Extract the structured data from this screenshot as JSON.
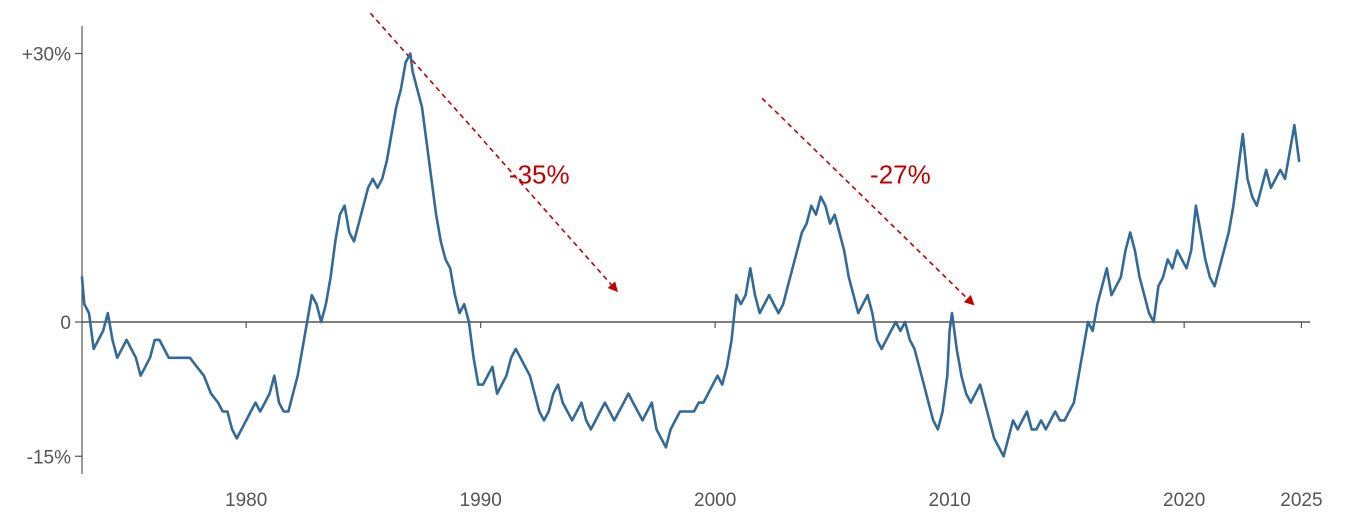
{
  "chart_data": {
    "type": "line",
    "title": "",
    "xlabel": "",
    "ylabel": "",
    "xlim": [
      1973.0,
      2025.0
    ],
    "ylim": [
      -17,
      30
    ],
    "grid": false,
    "legend": "none",
    "y_ticks": [
      {
        "value": 30,
        "label": "+30%"
      },
      {
        "value": 0,
        "label": "0"
      },
      {
        "value": -15,
        "label": "-15%"
      }
    ],
    "x_ticks": [
      {
        "value": 1980,
        "label": "1980"
      },
      {
        "value": 1990,
        "label": "1990"
      },
      {
        "value": 2000,
        "label": "2000"
      },
      {
        "value": 2010,
        "label": "2010"
      },
      {
        "value": 2020,
        "label": "2020"
      },
      {
        "value": 2025,
        "label": "2025"
      }
    ],
    "series": [
      {
        "color": "#336a96",
        "points": [
          [
            1973.0,
            5
          ],
          [
            1973.1,
            2
          ],
          [
            1973.3,
            1
          ],
          [
            1973.5,
            -3
          ],
          [
            1973.7,
            -2
          ],
          [
            1973.9,
            -1
          ],
          [
            1974.1,
            1
          ],
          [
            1974.3,
            -2
          ],
          [
            1974.5,
            -4
          ],
          [
            1974.7,
            -3
          ],
          [
            1974.9,
            -2
          ],
          [
            1975.1,
            -3
          ],
          [
            1975.3,
            -4
          ],
          [
            1975.5,
            -6
          ],
          [
            1975.7,
            -5
          ],
          [
            1975.9,
            -4
          ],
          [
            1976.1,
            -2
          ],
          [
            1976.3,
            -2
          ],
          [
            1976.5,
            -3
          ],
          [
            1976.7,
            -4
          ],
          [
            1977.0,
            -4
          ],
          [
            1977.3,
            -4
          ],
          [
            1977.6,
            -4
          ],
          [
            1977.9,
            -5
          ],
          [
            1978.2,
            -6
          ],
          [
            1978.5,
            -8
          ],
          [
            1978.8,
            -9
          ],
          [
            1979.0,
            -10
          ],
          [
            1979.2,
            -10
          ],
          [
            1979.4,
            -12
          ],
          [
            1979.6,
            -13
          ],
          [
            1979.8,
            -12
          ],
          [
            1980.0,
            -11
          ],
          [
            1980.2,
            -10
          ],
          [
            1980.4,
            -9
          ],
          [
            1980.6,
            -10
          ],
          [
            1980.8,
            -9
          ],
          [
            1981.0,
            -8
          ],
          [
            1981.2,
            -6
          ],
          [
            1981.4,
            -9
          ],
          [
            1981.6,
            -10
          ],
          [
            1981.8,
            -10
          ],
          [
            1982.0,
            -8
          ],
          [
            1982.2,
            -6
          ],
          [
            1982.4,
            -3
          ],
          [
            1982.6,
            0
          ],
          [
            1982.8,
            3
          ],
          [
            1983.0,
            2
          ],
          [
            1983.2,
            0
          ],
          [
            1983.4,
            2
          ],
          [
            1983.6,
            5
          ],
          [
            1983.8,
            9
          ],
          [
            1984.0,
            12
          ],
          [
            1984.2,
            13
          ],
          [
            1984.4,
            10
          ],
          [
            1984.6,
            9
          ],
          [
            1984.8,
            11
          ],
          [
            1985.0,
            13
          ],
          [
            1985.2,
            15
          ],
          [
            1985.4,
            16
          ],
          [
            1985.6,
            15
          ],
          [
            1985.8,
            16
          ],
          [
            1986.0,
            18
          ],
          [
            1986.2,
            21
          ],
          [
            1986.4,
            24
          ],
          [
            1986.6,
            26
          ],
          [
            1986.8,
            29
          ],
          [
            1987.0,
            30
          ],
          [
            1987.1,
            28
          ],
          [
            1987.3,
            26
          ],
          [
            1987.5,
            24
          ],
          [
            1987.7,
            20
          ],
          [
            1987.9,
            16
          ],
          [
            1988.1,
            12
          ],
          [
            1988.3,
            9
          ],
          [
            1988.5,
            7
          ],
          [
            1988.7,
            6
          ],
          [
            1988.9,
            3
          ],
          [
            1989.1,
            1
          ],
          [
            1989.3,
            2
          ],
          [
            1989.5,
            0
          ],
          [
            1989.7,
            -4
          ],
          [
            1989.9,
            -7
          ],
          [
            1990.1,
            -7
          ],
          [
            1990.3,
            -6
          ],
          [
            1990.5,
            -5
          ],
          [
            1990.7,
            -8
          ],
          [
            1990.9,
            -7
          ],
          [
            1991.1,
            -6
          ],
          [
            1991.3,
            -4
          ],
          [
            1991.5,
            -3
          ],
          [
            1991.7,
            -4
          ],
          [
            1991.9,
            -5
          ],
          [
            1992.1,
            -6
          ],
          [
            1992.3,
            -8
          ],
          [
            1992.5,
            -10
          ],
          [
            1992.7,
            -11
          ],
          [
            1992.9,
            -10
          ],
          [
            1993.1,
            -8
          ],
          [
            1993.3,
            -7
          ],
          [
            1993.5,
            -9
          ],
          [
            1993.7,
            -10
          ],
          [
            1993.9,
            -11
          ],
          [
            1994.1,
            -10
          ],
          [
            1994.3,
            -9
          ],
          [
            1994.5,
            -11
          ],
          [
            1994.7,
            -12
          ],
          [
            1994.9,
            -11
          ],
          [
            1995.1,
            -10
          ],
          [
            1995.3,
            -9
          ],
          [
            1995.5,
            -10
          ],
          [
            1995.7,
            -11
          ],
          [
            1995.9,
            -10
          ],
          [
            1996.1,
            -9
          ],
          [
            1996.3,
            -8
          ],
          [
            1996.5,
            -9
          ],
          [
            1996.7,
            -10
          ],
          [
            1996.9,
            -11
          ],
          [
            1997.1,
            -10
          ],
          [
            1997.3,
            -9
          ],
          [
            1997.5,
            -12
          ],
          [
            1997.7,
            -13
          ],
          [
            1997.9,
            -14
          ],
          [
            1998.1,
            -12
          ],
          [
            1998.3,
            -11
          ],
          [
            1998.5,
            -10
          ],
          [
            1998.7,
            -10
          ],
          [
            1998.9,
            -10
          ],
          [
            1999.1,
            -10
          ],
          [
            1999.3,
            -9
          ],
          [
            1999.5,
            -9
          ],
          [
            1999.7,
            -8
          ],
          [
            1999.9,
            -7
          ],
          [
            2000.1,
            -6
          ],
          [
            2000.3,
            -7
          ],
          [
            2000.5,
            -5
          ],
          [
            2000.7,
            -2
          ],
          [
            2000.9,
            3
          ],
          [
            2001.1,
            2
          ],
          [
            2001.3,
            3
          ],
          [
            2001.5,
            6
          ],
          [
            2001.7,
            3
          ],
          [
            2001.9,
            1
          ],
          [
            2002.1,
            2
          ],
          [
            2002.3,
            3
          ],
          [
            2002.5,
            2
          ],
          [
            2002.7,
            1
          ],
          [
            2002.9,
            2
          ],
          [
            2003.1,
            4
          ],
          [
            2003.3,
            6
          ],
          [
            2003.5,
            8
          ],
          [
            2003.7,
            10
          ],
          [
            2003.9,
            11
          ],
          [
            2004.1,
            13
          ],
          [
            2004.3,
            12
          ],
          [
            2004.5,
            14
          ],
          [
            2004.7,
            13
          ],
          [
            2004.9,
            11
          ],
          [
            2005.1,
            12
          ],
          [
            2005.3,
            10
          ],
          [
            2005.5,
            8
          ],
          [
            2005.7,
            5
          ],
          [
            2005.9,
            3
          ],
          [
            2006.1,
            1
          ],
          [
            2006.3,
            2
          ],
          [
            2006.5,
            3
          ],
          [
            2006.7,
            1
          ],
          [
            2006.9,
            -2
          ],
          [
            2007.1,
            -3
          ],
          [
            2007.3,
            -2
          ],
          [
            2007.5,
            -1
          ],
          [
            2007.7,
            0
          ],
          [
            2007.9,
            -1
          ],
          [
            2008.1,
            0
          ],
          [
            2008.3,
            -2
          ],
          [
            2008.5,
            -3
          ],
          [
            2008.7,
            -5
          ],
          [
            2008.9,
            -7
          ],
          [
            2009.1,
            -9
          ],
          [
            2009.3,
            -11
          ],
          [
            2009.5,
            -12
          ],
          [
            2009.7,
            -10
          ],
          [
            2009.9,
            -6
          ],
          [
            2010.0,
            -1
          ],
          [
            2010.1,
            1
          ],
          [
            2010.3,
            -3
          ],
          [
            2010.5,
            -6
          ],
          [
            2010.7,
            -8
          ],
          [
            2010.9,
            -9
          ],
          [
            2011.1,
            -8
          ],
          [
            2011.3,
            -7
          ],
          [
            2011.5,
            -9
          ],
          [
            2011.7,
            -11
          ],
          [
            2011.9,
            -13
          ],
          [
            2012.1,
            -14
          ],
          [
            2012.3,
            -15
          ],
          [
            2012.5,
            -13
          ],
          [
            2012.7,
            -11
          ],
          [
            2012.9,
            -12
          ],
          [
            2013.1,
            -11
          ],
          [
            2013.3,
            -10
          ],
          [
            2013.5,
            -12
          ],
          [
            2013.7,
            -12
          ],
          [
            2013.9,
            -11
          ],
          [
            2014.1,
            -12
          ],
          [
            2014.3,
            -11
          ],
          [
            2014.5,
            -10
          ],
          [
            2014.7,
            -11
          ],
          [
            2014.9,
            -11
          ],
          [
            2015.1,
            -10
          ],
          [
            2015.3,
            -9
          ],
          [
            2015.5,
            -6
          ],
          [
            2015.7,
            -3
          ],
          [
            2015.9,
            0
          ],
          [
            2016.1,
            -1
          ],
          [
            2016.3,
            2
          ],
          [
            2016.5,
            4
          ],
          [
            2016.7,
            6
          ],
          [
            2016.9,
            3
          ],
          [
            2017.1,
            4
          ],
          [
            2017.3,
            5
          ],
          [
            2017.5,
            8
          ],
          [
            2017.7,
            10
          ],
          [
            2017.9,
            8
          ],
          [
            2018.1,
            5
          ],
          [
            2018.3,
            3
          ],
          [
            2018.5,
            1
          ],
          [
            2018.7,
            0
          ],
          [
            2018.9,
            4
          ],
          [
            2019.1,
            5
          ],
          [
            2019.3,
            7
          ],
          [
            2019.5,
            6
          ],
          [
            2019.7,
            8
          ],
          [
            2019.9,
            7
          ],
          [
            2020.1,
            6
          ],
          [
            2020.3,
            8
          ],
          [
            2020.5,
            13
          ],
          [
            2020.7,
            10
          ],
          [
            2020.9,
            7
          ],
          [
            2021.1,
            5
          ],
          [
            2021.3,
            4
          ],
          [
            2021.5,
            6
          ],
          [
            2021.7,
            8
          ],
          [
            2021.9,
            10
          ],
          [
            2022.1,
            13
          ],
          [
            2022.3,
            17
          ],
          [
            2022.5,
            21
          ],
          [
            2022.7,
            16
          ],
          [
            2022.9,
            14
          ],
          [
            2023.1,
            13
          ],
          [
            2023.3,
            15
          ],
          [
            2023.5,
            17
          ],
          [
            2023.7,
            15
          ],
          [
            2023.9,
            16
          ],
          [
            2024.1,
            17
          ],
          [
            2024.3,
            16
          ],
          [
            2024.5,
            19
          ],
          [
            2024.7,
            22
          ],
          [
            2024.9,
            18
          ]
        ]
      }
    ],
    "annotations": [
      {
        "label": "-35%",
        "x": 1992.5,
        "y": 16.5,
        "from": [
          1985.3,
          34.5
        ],
        "to": [
          1995.8,
          3.5
        ]
      },
      {
        "label": "-27%",
        "x": 2007.9,
        "y": 16.5,
        "from": [
          2002.0,
          25.0
        ],
        "to": [
          2011.0,
          2.0
        ]
      }
    ],
    "colors": {
      "line": "#336a96",
      "axis": "#555555",
      "annotation": "#c00000"
    }
  }
}
